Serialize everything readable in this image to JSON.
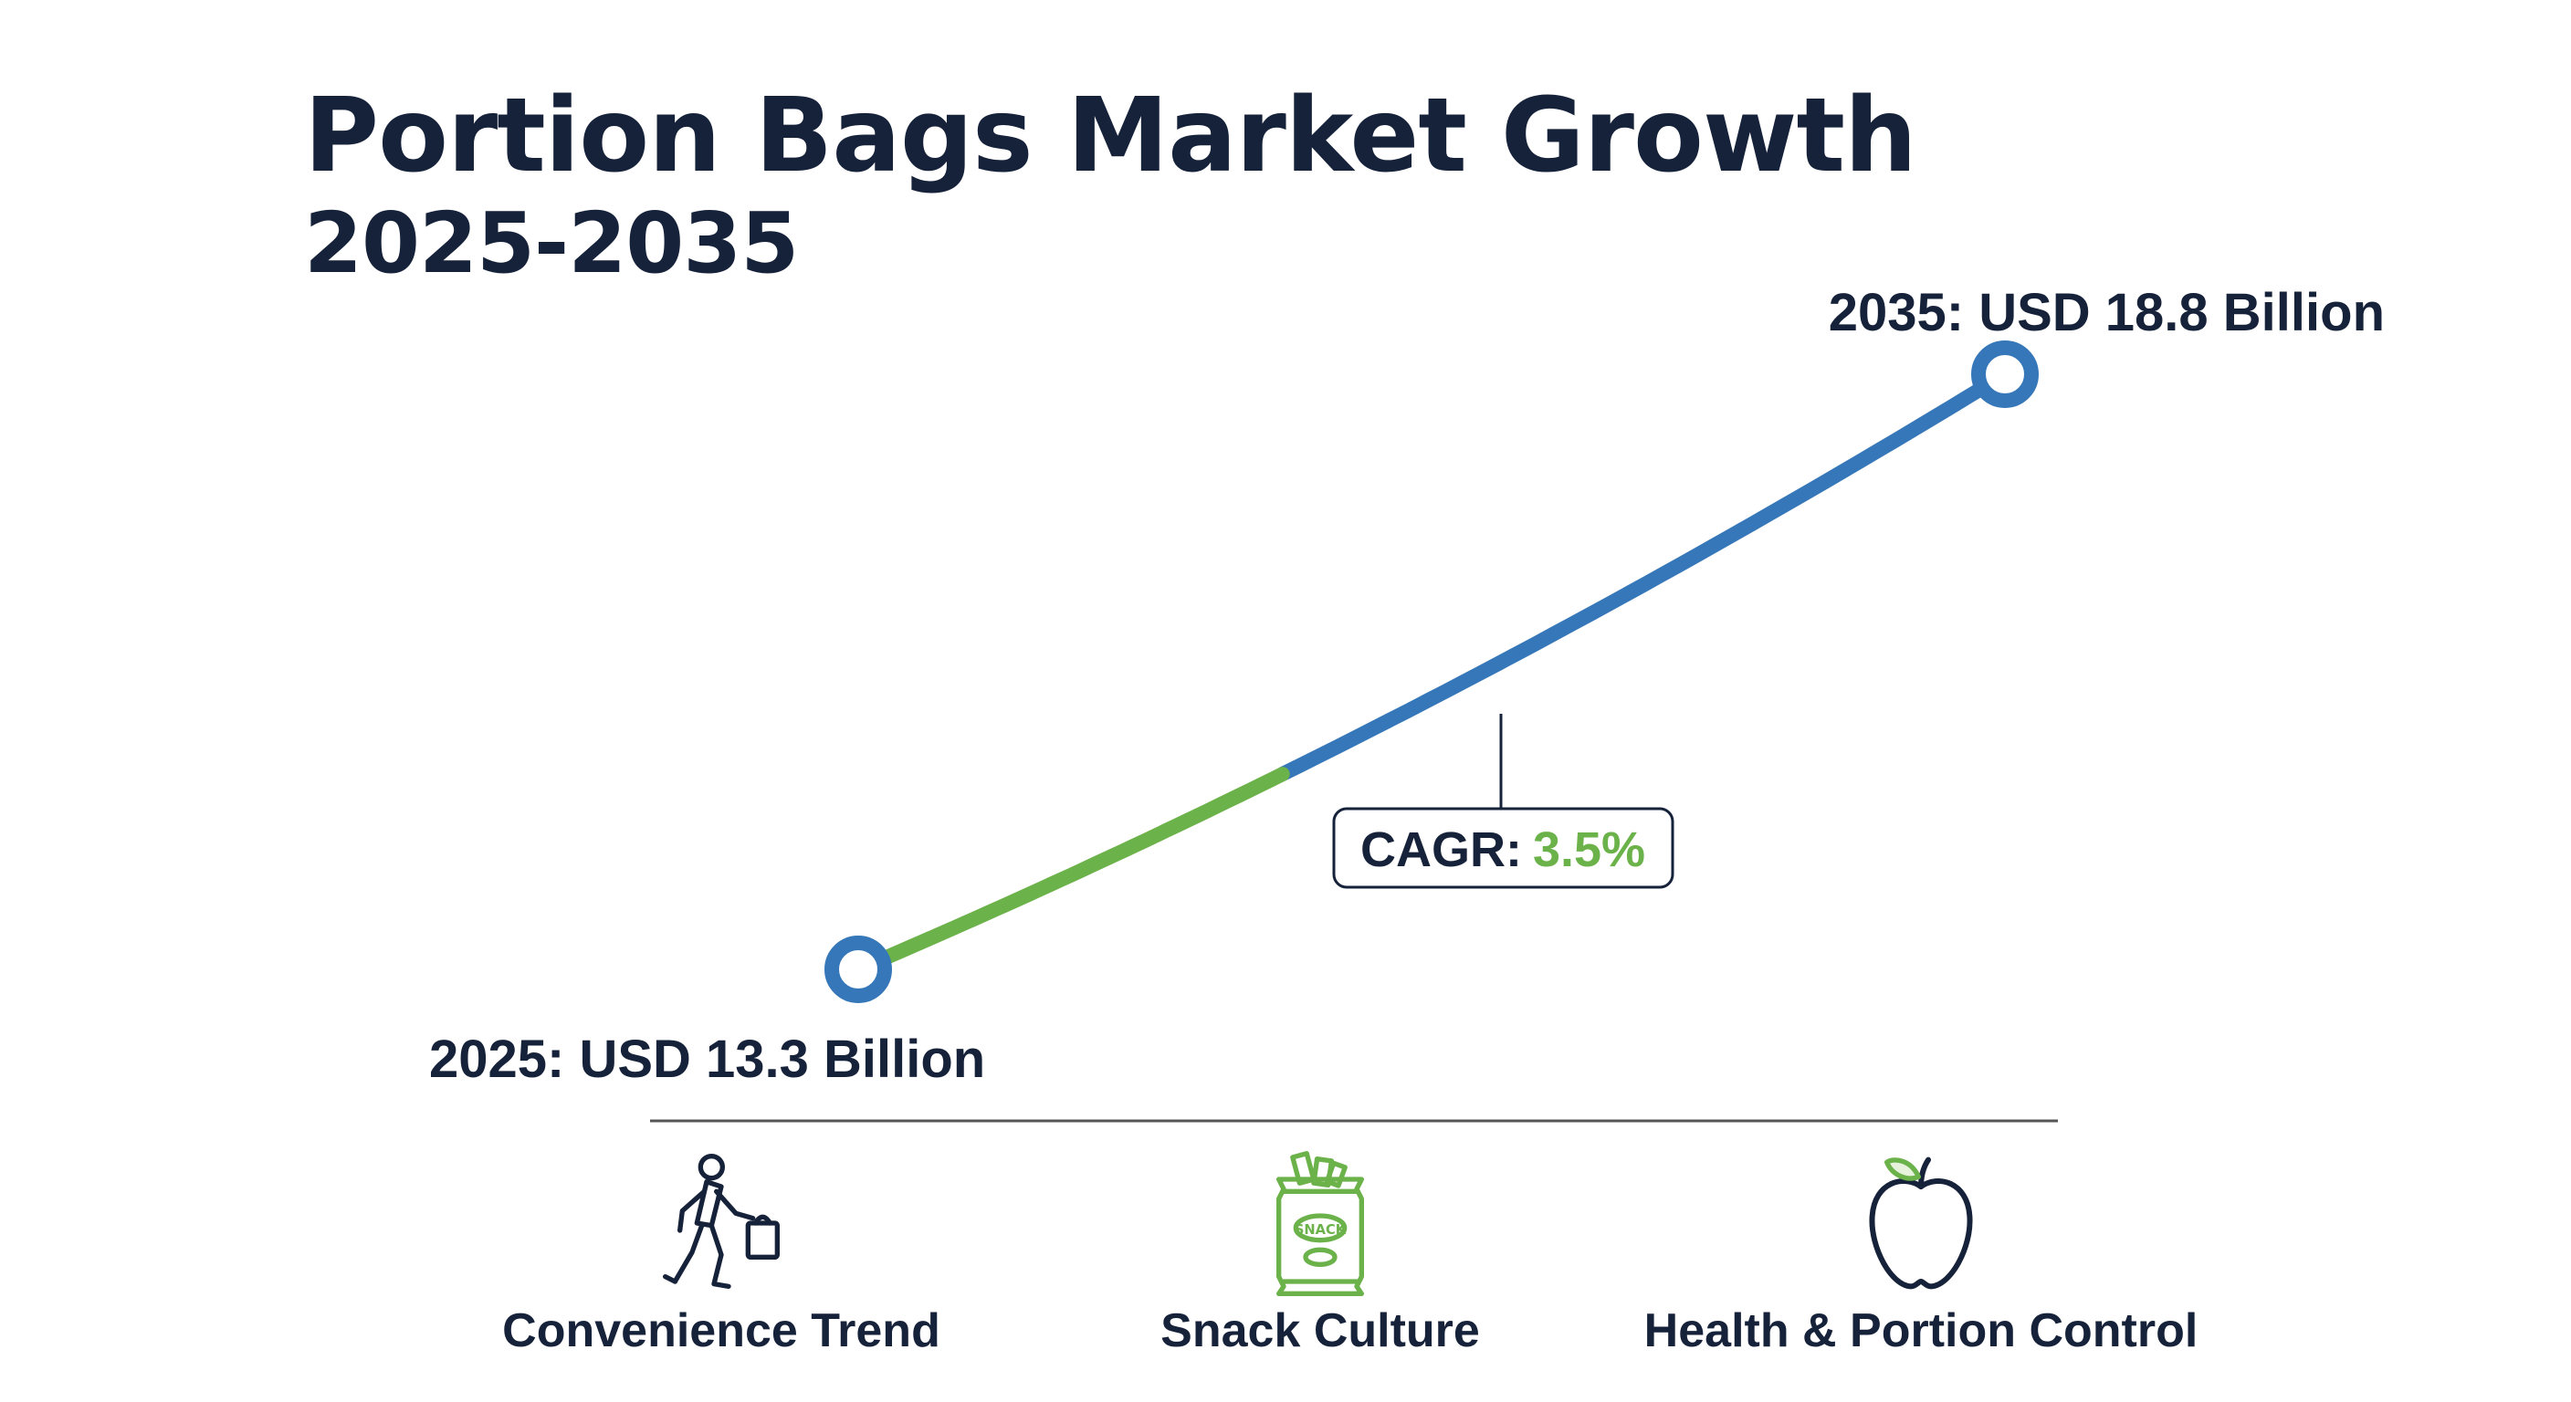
{
  "header": {
    "title": "Portion Bags Market Growth",
    "subtitle": "2025-2035"
  },
  "chart_data": {
    "type": "line",
    "title": "Portion Bags Market Growth",
    "subtitle": "2025-2035",
    "x": [
      2025,
      2035
    ],
    "values": [
      13.3,
      18.8
    ],
    "xlim": [
      2025,
      2035
    ],
    "unit": "USD Billion",
    "grid": false,
    "points": [
      {
        "year": 2025,
        "value": 13.3,
        "label": "2025: USD 13.3 Billion"
      },
      {
        "year": 2035,
        "value": 18.8,
        "label": "2035: USD 18.8 Billion"
      }
    ],
    "cagr": {
      "label": "CAGR:",
      "value": "3.5%"
    },
    "colors": {
      "line_early": "#6cb24a",
      "line_late": "#3577b8",
      "text": "#16223a",
      "accent": "#6cb24a"
    }
  },
  "drivers": [
    {
      "label": "Convenience Trend",
      "icon": "person-walking-with-bag-icon"
    },
    {
      "label": "Snack Culture",
      "icon": "snack-bag-icon",
      "icon_text": "SNACK"
    },
    {
      "label": "Health & Portion Control",
      "icon": "apple-icon"
    }
  ]
}
